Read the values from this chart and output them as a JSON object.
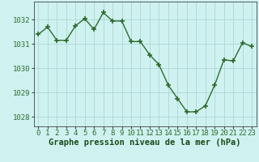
{
  "x": [
    0,
    1,
    2,
    3,
    4,
    5,
    6,
    7,
    8,
    9,
    10,
    11,
    12,
    13,
    14,
    15,
    16,
    17,
    18,
    19,
    20,
    21,
    22,
    23
  ],
  "y": [
    1031.4,
    1031.7,
    1031.15,
    1031.15,
    1031.75,
    1032.05,
    1031.6,
    1032.3,
    1031.95,
    1031.95,
    1031.1,
    1031.1,
    1030.55,
    1030.15,
    1029.3,
    1028.75,
    1028.2,
    1028.2,
    1028.45,
    1029.3,
    1030.35,
    1030.3,
    1031.05,
    1030.9
  ],
  "line_color": "#2d6b2d",
  "marker": "+",
  "marker_size": 4,
  "marker_lw": 1.2,
  "bg_color": "#cff2f0",
  "grid_color": "#b0dbd8",
  "xlabel": "Graphe pression niveau de la mer (hPa)",
  "xlabel_fontsize": 7.5,
  "yticks": [
    1028,
    1029,
    1030,
    1031,
    1032
  ],
  "xticks": [
    0,
    1,
    2,
    3,
    4,
    5,
    6,
    7,
    8,
    9,
    10,
    11,
    12,
    13,
    14,
    15,
    16,
    17,
    18,
    19,
    20,
    21,
    22,
    23
  ],
  "ylim": [
    1027.6,
    1032.75
  ],
  "xlim": [
    -0.5,
    23.5
  ],
  "tick_fontsize": 6.5,
  "line_width": 1.0
}
